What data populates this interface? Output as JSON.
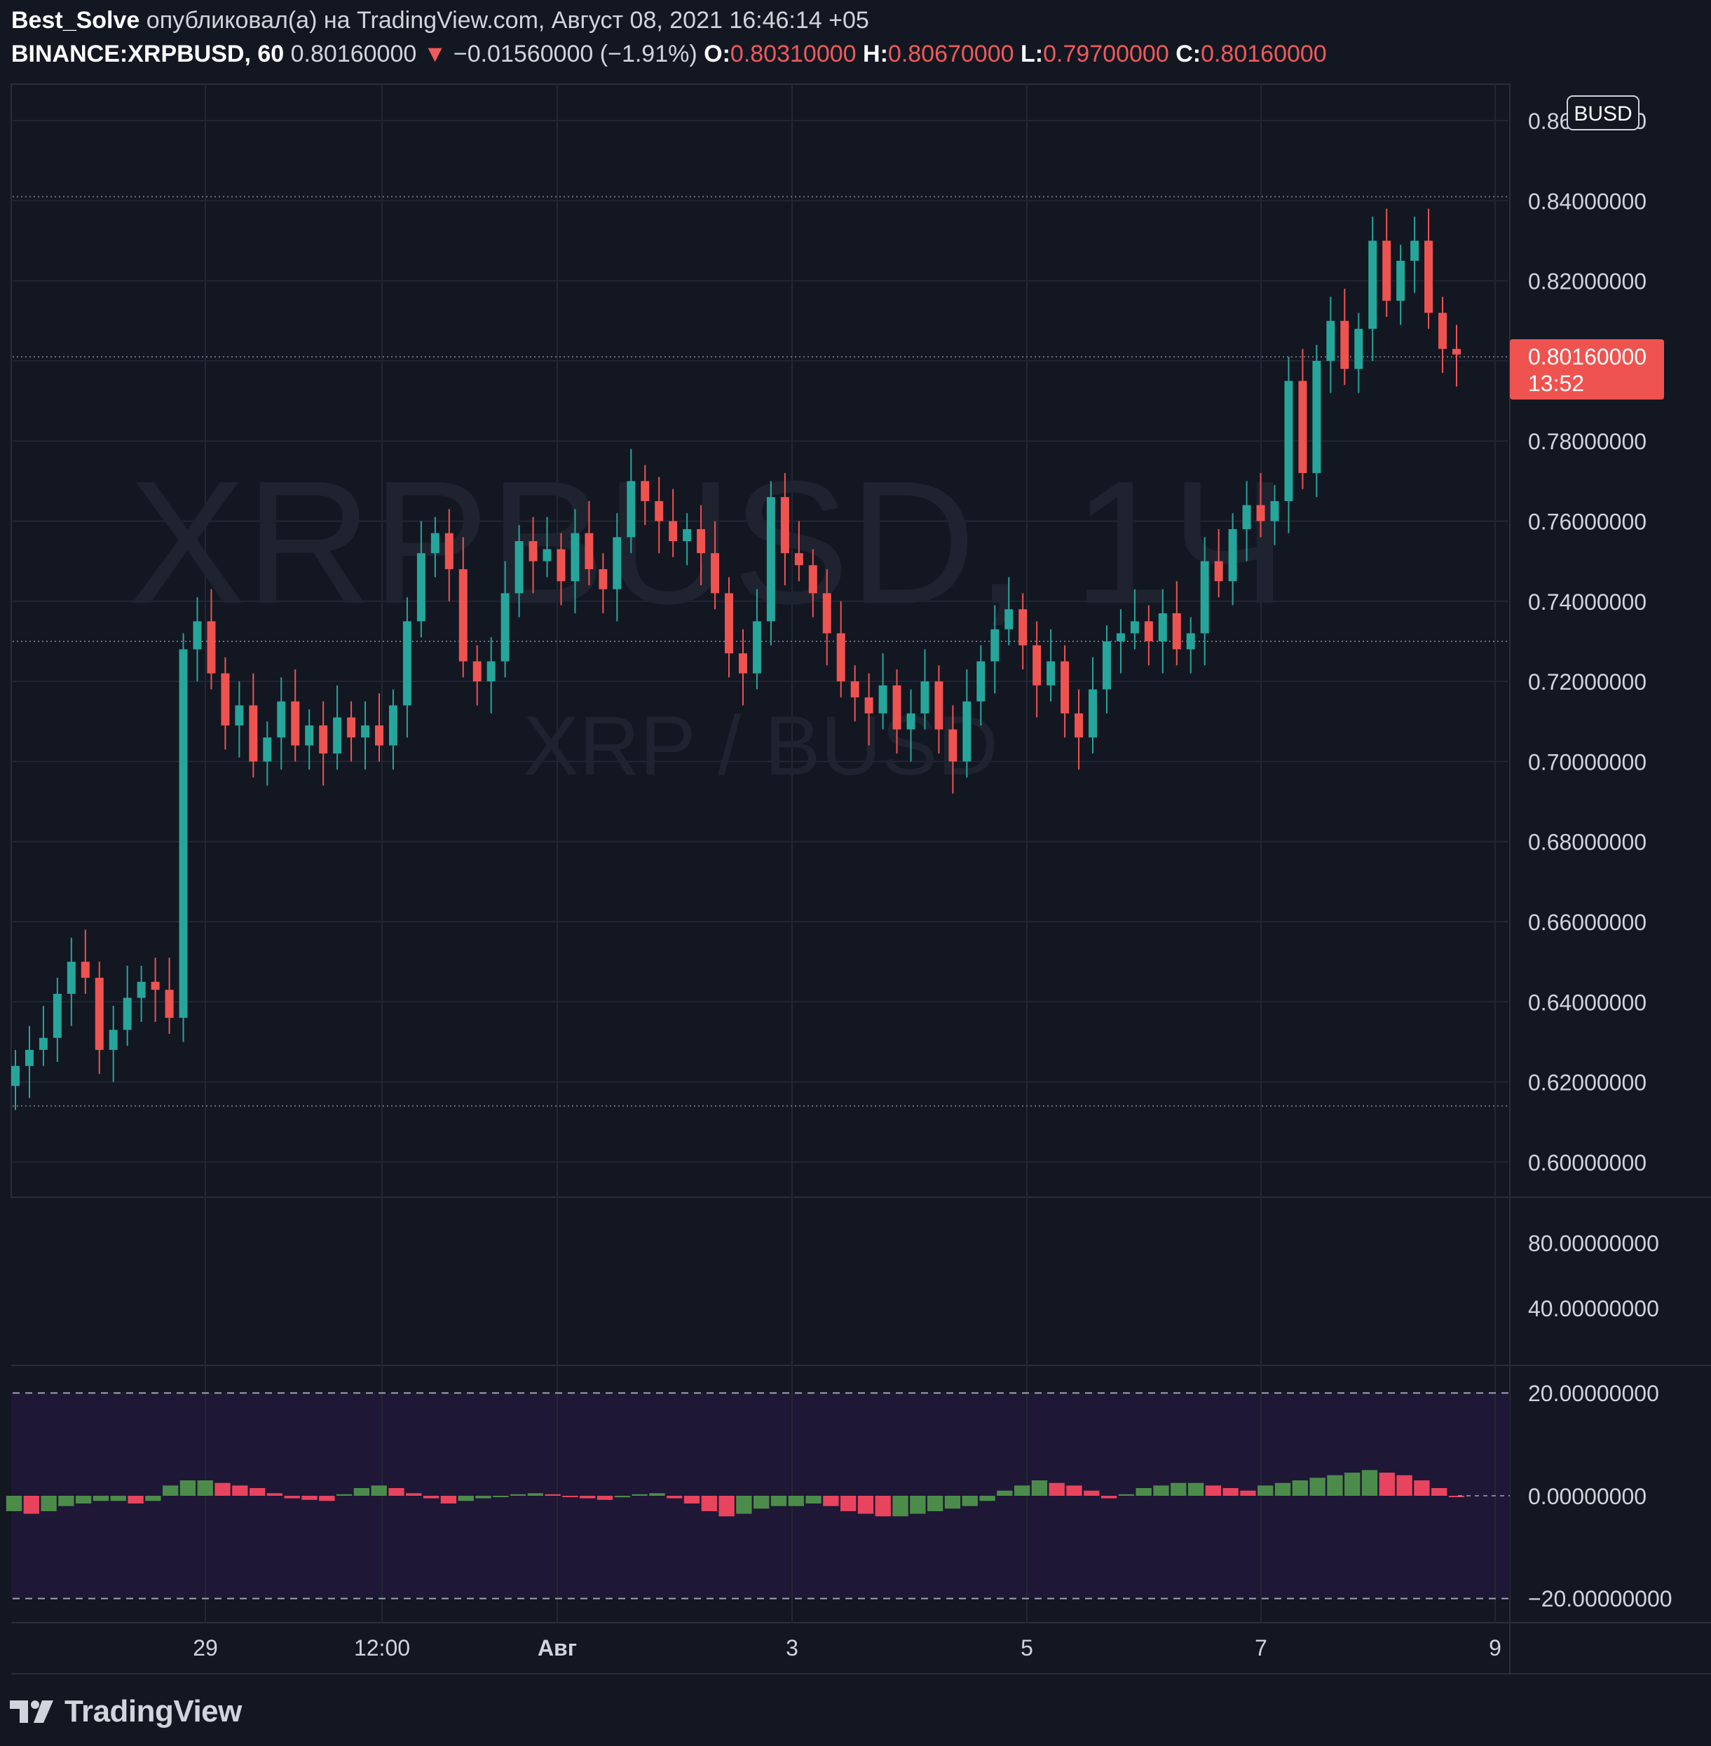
{
  "header": {
    "author": "Best_Solve",
    "published_text": "опубликовал(а) на TradingView.com, Август 08, 2021 16:46:14 +05",
    "symbol": "BINANCE:XRPBUSD, 60",
    "last": "0.80160000",
    "change_arrow": "▼",
    "change": "−0.01560000 (−1.91%)",
    "o_label": "O:",
    "o_value": "0.80310000",
    "h_label": "H:",
    "h_value": "0.80670000",
    "l_label": "L:",
    "l_value": "0.79700000",
    "c_label": "C:",
    "c_value": "0.80160000"
  },
  "watermark": {
    "main": "XRPBUSD, 1Ч",
    "sub": "XRP / BUSD"
  },
  "currency_badge": "BUSD",
  "price_label": {
    "value": "0.80160000",
    "countdown": "13:52"
  },
  "footer": {
    "brand": "TradingView"
  },
  "colors": {
    "background": "#131722",
    "up": "#26a69a",
    "down": "#ef5350",
    "grid": "#232733",
    "text": "#d1d4dc",
    "osc_bg": "#1f1736",
    "osc_up": "#4c8c4a",
    "osc_down": "#e8445e"
  },
  "chart_data": [
    {
      "type": "candlestick",
      "timeframe": "60",
      "price_axis": {
        "ticks": [
          "0.86000000",
          "0.84000000",
          "0.82000000",
          "0.80000000",
          "0.78000000",
          "0.76000000",
          "0.74000000",
          "0.72000000",
          "0.70000000",
          "0.68000000",
          "0.66000000",
          "0.64000000",
          "0.62000000",
          "0.60000000"
        ],
        "ylim": [
          0.59,
          0.87
        ]
      },
      "time_axis": {
        "labels": [
          "29",
          "12:00",
          "Авг",
          "3",
          "5",
          "7",
          "9"
        ]
      },
      "horizontal_levels": [
        0.841,
        0.801,
        0.73,
        0.614
      ],
      "series": [
        {
          "name": "",
          "points": [
            [
              0.619,
              0.624
            ],
            [
              0.624,
              0.628
            ],
            [
              0.628,
              0.631
            ],
            [
              0.631,
              0.642
            ],
            [
              0.642,
              0.65
            ],
            [
              0.65,
              0.646
            ],
            [
              0.646,
              0.628
            ],
            [
              0.628,
              0.633
            ],
            [
              0.633,
              0.641
            ],
            [
              0.641,
              0.645
            ],
            [
              0.645,
              0.643
            ],
            [
              0.643,
              0.636
            ],
            [
              0.636,
              0.728
            ],
            [
              0.728,
              0.735
            ],
            [
              0.735,
              0.722
            ],
            [
              0.722,
              0.709
            ],
            [
              0.709,
              0.714
            ],
            [
              0.714,
              0.7
            ],
            [
              0.7,
              0.706
            ],
            [
              0.706,
              0.715
            ],
            [
              0.715,
              0.704
            ],
            [
              0.704,
              0.709
            ],
            [
              0.709,
              0.702
            ],
            [
              0.702,
              0.711
            ],
            [
              0.711,
              0.706
            ],
            [
              0.706,
              0.709
            ],
            [
              0.709,
              0.704
            ],
            [
              0.704,
              0.714
            ],
            [
              0.714,
              0.735
            ],
            [
              0.735,
              0.752
            ],
            [
              0.752,
              0.757
            ],
            [
              0.757,
              0.748
            ],
            [
              0.748,
              0.725
            ],
            [
              0.725,
              0.72
            ],
            [
              0.72,
              0.725
            ],
            [
              0.725,
              0.742
            ],
            [
              0.742,
              0.755
            ],
            [
              0.755,
              0.75
            ],
            [
              0.75,
              0.753
            ],
            [
              0.753,
              0.745
            ],
            [
              0.745,
              0.757
            ],
            [
              0.757,
              0.748
            ],
            [
              0.748,
              0.743
            ],
            [
              0.743,
              0.756
            ],
            [
              0.756,
              0.77
            ],
            [
              0.77,
              0.765
            ],
            [
              0.765,
              0.76
            ],
            [
              0.76,
              0.755
            ],
            [
              0.755,
              0.758
            ],
            [
              0.758,
              0.752
            ],
            [
              0.752,
              0.742
            ],
            [
              0.742,
              0.727
            ],
            [
              0.727,
              0.722
            ],
            [
              0.722,
              0.735
            ],
            [
              0.735,
              0.766
            ],
            [
              0.766,
              0.752
            ],
            [
              0.752,
              0.749
            ],
            [
              0.749,
              0.742
            ],
            [
              0.742,
              0.732
            ],
            [
              0.732,
              0.72
            ],
            [
              0.72,
              0.716
            ],
            [
              0.716,
              0.712
            ],
            [
              0.712,
              0.719
            ],
            [
              0.719,
              0.708
            ],
            [
              0.708,
              0.712
            ],
            [
              0.712,
              0.72
            ],
            [
              0.72,
              0.708
            ],
            [
              0.708,
              0.7
            ],
            [
              0.7,
              0.715
            ],
            [
              0.715,
              0.725
            ],
            [
              0.725,
              0.733
            ],
            [
              0.733,
              0.738
            ],
            [
              0.738,
              0.729
            ],
            [
              0.729,
              0.719
            ],
            [
              0.719,
              0.725
            ],
            [
              0.725,
              0.712
            ],
            [
              0.712,
              0.706
            ],
            [
              0.706,
              0.718
            ],
            [
              0.718,
              0.73
            ],
            [
              0.73,
              0.732
            ],
            [
              0.732,
              0.735
            ],
            [
              0.735,
              0.73
            ],
            [
              0.73,
              0.737
            ],
            [
              0.737,
              0.728
            ],
            [
              0.728,
              0.732
            ],
            [
              0.732,
              0.75
            ],
            [
              0.75,
              0.745
            ],
            [
              0.745,
              0.758
            ],
            [
              0.758,
              0.764
            ],
            [
              0.764,
              0.76
            ],
            [
              0.76,
              0.765
            ],
            [
              0.765,
              0.795
            ],
            [
              0.795,
              0.772
            ],
            [
              0.772,
              0.8
            ],
            [
              0.8,
              0.81
            ],
            [
              0.81,
              0.798
            ],
            [
              0.798,
              0.808
            ],
            [
              0.808,
              0.83
            ],
            [
              0.83,
              0.815
            ],
            [
              0.815,
              0.825
            ],
            [
              0.825,
              0.83
            ],
            [
              0.83,
              0.812
            ],
            [
              0.812,
              0.803
            ],
            [
              0.803,
              0.8016
            ]
          ]
        }
      ]
    },
    {
      "type": "bar",
      "name": "oscillator",
      "axis_ticks": [
        "80.00000000",
        "40.00000000",
        "20.00000000",
        "0.00000000",
        "−20.00000000"
      ],
      "bands": [
        20,
        -20
      ],
      "values": [
        -3,
        -3.5,
        -3,
        -2,
        -1.5,
        -1,
        -1,
        -1.5,
        -1,
        2,
        3,
        3,
        2.5,
        2,
        1.5,
        0.5,
        -0.5,
        -0.8,
        -1,
        0.3,
        1.5,
        2,
        1.5,
        0.5,
        -0.5,
        -1.5,
        -1,
        -0.5,
        -0.2,
        0.3,
        0.5,
        0.3,
        -0.2,
        -0.5,
        -0.8,
        -0.3,
        0.3,
        0.5,
        -0.5,
        -1.5,
        -3,
        -4,
        -3.5,
        -2.5,
        -2,
        -2,
        -1.5,
        -2,
        -3,
        -3.5,
        -4,
        -4,
        -3.5,
        -3,
        -2.5,
        -2,
        -1,
        1,
        2,
        3,
        2.5,
        2,
        1,
        -0.5,
        0.3,
        1.5,
        2,
        2.5,
        2.5,
        2,
        1.5,
        1,
        2,
        2.5,
        3,
        3.5,
        4,
        4.5,
        5,
        4.5,
        4,
        3,
        1.5,
        0
      ]
    }
  ]
}
